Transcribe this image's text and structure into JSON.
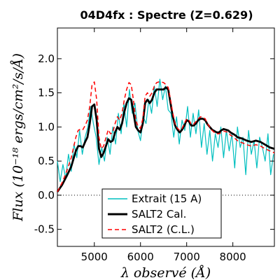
{
  "chart_data": {
    "type": "line",
    "title": "04D4fx : Spectre (Z=0.629)",
    "xlabel": "λ observé (Å)",
    "ylabel": "Flux (10⁻¹⁸ ergs/cm²/s/Å)",
    "xlim": [
      4200,
      8900
    ],
    "ylim": [
      -0.75,
      2.45
    ],
    "x_ticks": [
      5000,
      6000,
      7000,
      8000
    ],
    "x_tick_labels": [
      "5000",
      "6000",
      "7000",
      "8000"
    ],
    "y_ticks": [
      -0.5,
      0.0,
      0.5,
      1.0,
      1.5,
      2.0
    ],
    "y_tick_labels": [
      "-0.5",
      "0.0",
      "0.5",
      "1.0",
      "1.5",
      "2.0"
    ],
    "zero_line": 0.0,
    "grid": false,
    "legend_position": "bottom-center",
    "legend": [
      "Extrait (15 A)",
      "SALT2 Cal.",
      "SALT2 (C.L.)"
    ],
    "series": [
      {
        "name": "Extrait (15 A)",
        "color": "#00bfbf",
        "style": "solid",
        "x": [
          4200,
          4260,
          4320,
          4380,
          4440,
          4500,
          4560,
          4620,
          4680,
          4740,
          4800,
          4860,
          4920,
          4980,
          5040,
          5100,
          5160,
          5220,
          5280,
          5340,
          5400,
          5460,
          5520,
          5580,
          5640,
          5700,
          5760,
          5820,
          5880,
          5940,
          6000,
          6060,
          6120,
          6180,
          6240,
          6300,
          6360,
          6420,
          6480,
          6540,
          6600,
          6660,
          6720,
          6780,
          6840,
          6900,
          6960,
          7020,
          7080,
          7140,
          7200,
          7260,
          7320,
          7380,
          7440,
          7500,
          7560,
          7620,
          7680,
          7740,
          7800,
          7860,
          7920,
          7980,
          8040,
          8100,
          8160,
          8220,
          8280,
          8340,
          8400,
          8460,
          8520,
          8580,
          8640,
          8700,
          8760,
          8820,
          8880
        ],
        "y": [
          0.5,
          0.2,
          0.45,
          0.25,
          0.6,
          0.35,
          0.75,
          0.55,
          0.95,
          0.6,
          0.85,
          1.0,
          1.3,
          1.05,
          0.85,
          0.45,
          0.7,
          0.5,
          0.85,
          0.6,
          1.0,
          0.75,
          1.2,
          0.9,
          1.35,
          1.0,
          1.55,
          1.2,
          1.35,
          0.95,
          0.8,
          1.15,
          1.05,
          1.4,
          1.2,
          1.6,
          1.3,
          1.7,
          1.4,
          1.6,
          1.25,
          1.2,
          0.85,
          1.15,
          0.75,
          1.1,
          0.95,
          1.3,
          0.85,
          1.2,
          0.9,
          1.25,
          0.7,
          1.05,
          0.6,
          0.95,
          0.5,
          0.9,
          0.7,
          1.0,
          0.55,
          0.95,
          0.65,
          0.9,
          0.4,
          1.0,
          0.7,
          0.85,
          0.3,
          0.95,
          0.6,
          0.8,
          0.4,
          0.85,
          0.7,
          0.5,
          0.9,
          0.3,
          0.6
        ]
      },
      {
        "name": "SALT2 Cal.",
        "color": "#000000",
        "style": "solid",
        "x": [
          4200,
          4300,
          4400,
          4500,
          4600,
          4650,
          4700,
          4750,
          4800,
          4850,
          4900,
          4950,
          5000,
          5050,
          5100,
          5150,
          5200,
          5250,
          5300,
          5350,
          5400,
          5450,
          5500,
          5550,
          5600,
          5650,
          5700,
          5750,
          5800,
          5850,
          5900,
          5950,
          6000,
          6050,
          6100,
          6150,
          6200,
          6250,
          6300,
          6350,
          6400,
          6450,
          6500,
          6550,
          6600,
          6650,
          6700,
          6750,
          6800,
          6850,
          6900,
          6950,
          7000,
          7050,
          7100,
          7150,
          7200,
          7250,
          7300,
          7350,
          7400,
          7450,
          7500,
          7550,
          7600,
          7650,
          7700,
          7750,
          7800,
          7850,
          7900,
          7950,
          8000,
          8050,
          8100,
          8150,
          8200,
          8300,
          8400,
          8500,
          8600,
          8700,
          8800,
          8900
        ],
        "y": [
          0.05,
          0.15,
          0.28,
          0.42,
          0.65,
          0.72,
          0.72,
          0.7,
          0.78,
          0.85,
          1.05,
          1.3,
          1.33,
          1.1,
          0.68,
          0.56,
          0.62,
          0.72,
          0.82,
          0.78,
          0.8,
          0.92,
          1.0,
          0.96,
          1.05,
          1.22,
          1.35,
          1.42,
          1.4,
          1.2,
          1.0,
          0.95,
          0.92,
          1.05,
          1.35,
          1.4,
          1.35,
          1.4,
          1.5,
          1.55,
          1.55,
          1.55,
          1.55,
          1.58,
          1.55,
          1.35,
          1.15,
          1.02,
          0.96,
          0.92,
          0.96,
          1.02,
          1.1,
          1.08,
          1.02,
          1.02,
          1.05,
          1.1,
          1.12,
          1.12,
          1.1,
          1.04,
          1.0,
          0.96,
          0.94,
          0.92,
          0.92,
          0.95,
          0.97,
          0.96,
          0.95,
          0.92,
          0.9,
          0.88,
          0.85,
          0.84,
          0.83,
          0.8,
          0.78,
          0.8,
          0.78,
          0.74,
          0.7,
          0.68
        ]
      },
      {
        "name": "SALT2 (C.L.)",
        "color": "#ff0000",
        "style": "dashed",
        "x": [
          4200,
          4300,
          4400,
          4500,
          4600,
          4650,
          4700,
          4750,
          4800,
          4850,
          4900,
          4950,
          5000,
          5050,
          5100,
          5150,
          5200,
          5250,
          5300,
          5350,
          5400,
          5450,
          5500,
          5550,
          5600,
          5650,
          5700,
          5750,
          5800,
          5850,
          5900,
          5950,
          6000,
          6050,
          6100,
          6150,
          6200,
          6250,
          6300,
          6350,
          6400,
          6450,
          6500,
          6550,
          6600,
          6650,
          6700,
          6750,
          6800,
          6850,
          6900,
          6950,
          7000,
          7050,
          7100,
          7150,
          7200,
          7250,
          7300,
          7350,
          7400,
          7450,
          7500,
          7550,
          7600,
          7650,
          7700,
          7750,
          7800,
          7850,
          7900,
          7950,
          8000,
          8050,
          8100,
          8150,
          8200,
          8300,
          8400,
          8500,
          8600,
          8700,
          8800,
          8900
        ],
        "y": [
          0.05,
          0.18,
          0.35,
          0.55,
          0.85,
          0.95,
          0.97,
          0.96,
          1.02,
          1.1,
          1.3,
          1.62,
          1.66,
          1.4,
          0.85,
          0.68,
          0.72,
          0.84,
          0.96,
          0.9,
          0.92,
          1.05,
          1.15,
          1.1,
          1.2,
          1.4,
          1.55,
          1.65,
          1.62,
          1.38,
          1.1,
          1.0,
          0.98,
          1.12,
          1.45,
          1.5,
          1.45,
          1.5,
          1.6,
          1.65,
          1.66,
          1.66,
          1.65,
          1.62,
          1.58,
          1.4,
          1.2,
          1.05,
          0.98,
          0.95,
          0.98,
          1.05,
          1.12,
          1.1,
          1.04,
          1.04,
          1.08,
          1.12,
          1.15,
          1.14,
          1.12,
          1.05,
          1.0,
          0.95,
          0.92,
          0.9,
          0.9,
          0.92,
          0.94,
          0.93,
          0.92,
          0.88,
          0.86,
          0.83,
          0.8,
          0.78,
          0.77,
          0.74,
          0.72,
          0.74,
          0.72,
          0.68,
          0.65,
          0.62
        ]
      }
    ]
  }
}
